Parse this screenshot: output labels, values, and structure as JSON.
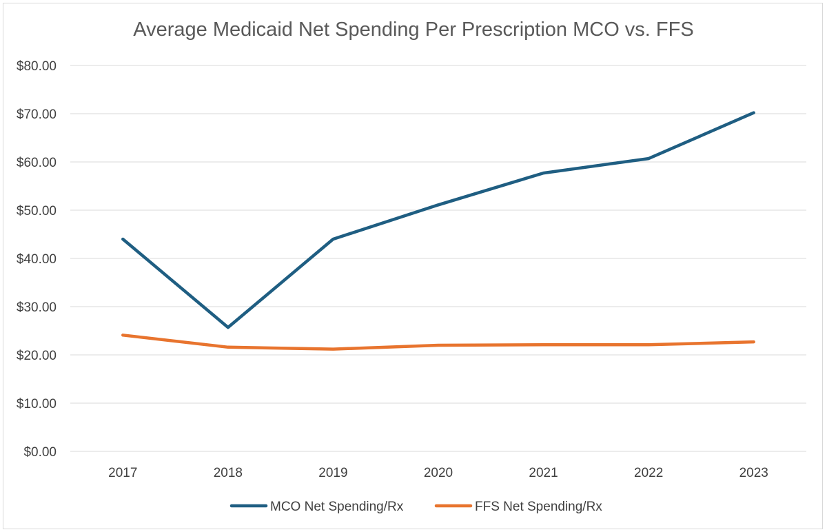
{
  "chart_data": {
    "type": "line",
    "title": "Average Medicaid Net Spending Per Prescription MCO vs. FFS",
    "xlabel": "",
    "ylabel": "",
    "categories": [
      "2017",
      "2018",
      "2019",
      "2020",
      "2021",
      "2022",
      "2023"
    ],
    "ylim": [
      0,
      80
    ],
    "y_ticks": [
      "$0.00",
      "$10.00",
      "$20.00",
      "$30.00",
      "$40.00",
      "$50.00",
      "$60.00",
      "$70.00",
      "$80.00"
    ],
    "grid": true,
    "legend_position": "bottom",
    "series": [
      {
        "name": "MCO Net Spending/Rx",
        "color": "#1f5e82",
        "values": [
          44.0,
          25.7,
          44.0,
          51.1,
          57.7,
          60.7,
          70.2
        ]
      },
      {
        "name": "FFS Net Spending/Rx",
        "color": "#e8742e",
        "values": [
          24.1,
          21.6,
          21.2,
          22.0,
          22.1,
          22.1,
          22.7
        ]
      }
    ]
  }
}
